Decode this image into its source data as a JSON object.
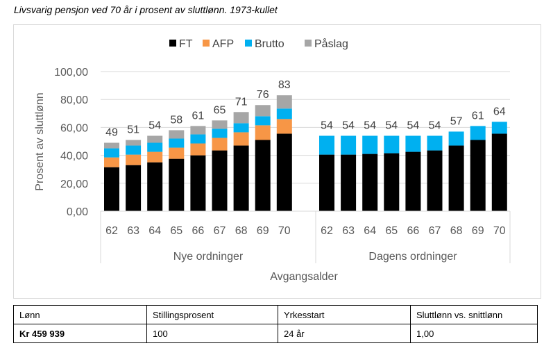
{
  "caption": "Livsvarig pensjon ved 70 år i prosent av sluttlønn. 1973-kullet",
  "chart_data": {
    "type": "bar",
    "stacked": true,
    "ylabel": "Prosent av sluttlønn",
    "xlabel": "Avgangsalder",
    "ylim": [
      0,
      100
    ],
    "yticks": [
      "0,00",
      "20,00",
      "40,00",
      "60,00",
      "80,00",
      "100,00"
    ],
    "grid": true,
    "legend_position": "top",
    "legend": [
      {
        "name": "FT",
        "color": "#000000"
      },
      {
        "name": "AFP",
        "color": "#f79646"
      },
      {
        "name": "Brutto",
        "color": "#00b0f0"
      },
      {
        "name": "Påslag",
        "color": "#a6a6a6"
      }
    ],
    "groups": [
      {
        "label": "Nye ordninger",
        "categories": [
          "62",
          "63",
          "64",
          "65",
          "66",
          "67",
          "68",
          "69",
          "70"
        ],
        "series": [
          {
            "name": "FT",
            "values": [
              31.5,
              33,
              35,
              37.5,
              40,
              43.5,
              47,
              51,
              55.5
            ]
          },
          {
            "name": "AFP",
            "values": [
              7,
              7.5,
              7.5,
              8,
              8.5,
              9,
              9.5,
              10.5,
              10.5
            ]
          },
          {
            "name": "Brutto",
            "values": [
              6.5,
              6.5,
              6.5,
              6.5,
              6.5,
              6.5,
              6.5,
              6.5,
              7.5
            ]
          },
          {
            "name": "Påslag",
            "values": [
              4,
              4,
              5,
              6,
              6,
              6,
              8,
              8,
              9.5
            ]
          }
        ],
        "totals": [
          "49",
          "51",
          "54",
          "58",
          "61",
          "65",
          "71",
          "76",
          "83"
        ]
      },
      {
        "label": "Dagens ordninger",
        "categories": [
          "62",
          "63",
          "64",
          "65",
          "66",
          "67",
          "68",
          "69",
          "70"
        ],
        "series": [
          {
            "name": "FT",
            "values": [
              40.5,
              40.5,
              41,
              41.5,
              42.5,
              43.5,
              47,
              51,
              55.5
            ]
          },
          {
            "name": "AFP",
            "values": [
              0,
              0,
              0,
              0,
              0,
              0,
              0,
              0,
              0
            ]
          },
          {
            "name": "Brutto",
            "values": [
              13.5,
              13.5,
              13,
              12.5,
              11.5,
              10.5,
              10,
              10,
              8.5
            ]
          },
          {
            "name": "Påslag",
            "values": [
              0,
              0,
              0,
              0,
              0,
              0,
              0,
              0,
              0
            ]
          }
        ],
        "totals": [
          "54",
          "54",
          "54",
          "54",
          "54",
          "54",
          "57",
          "61",
          "64"
        ]
      }
    ]
  },
  "info_table": {
    "headers": [
      "Lønn",
      "Stillingsprosent",
      "Yrkesstart",
      "Sluttlønn vs. snittlønn"
    ],
    "values": [
      "Kr 459 939",
      "100",
      "24 år",
      "1,00"
    ]
  }
}
